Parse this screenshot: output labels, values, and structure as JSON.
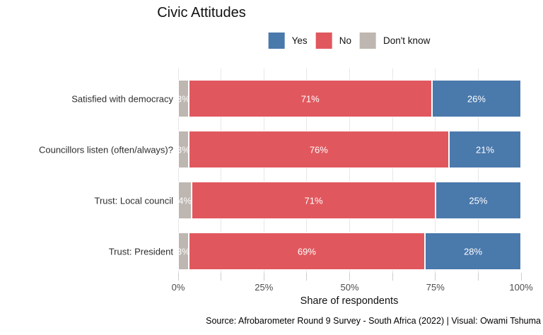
{
  "title": "Civic Attitudes",
  "legend": {
    "items": [
      {
        "label": "Yes",
        "color": "#4a79ac"
      },
      {
        "label": "No",
        "color": "#e0585e"
      },
      {
        "label": "Don't know",
        "color": "#beb6b0"
      }
    ]
  },
  "chart_data": {
    "type": "bar",
    "orientation": "horizontal",
    "stacked": true,
    "title": "Civic Attitudes",
    "xlabel": "Share of respondents",
    "ylabel": "",
    "xlim": [
      0,
      100
    ],
    "x_tick_labels": [
      "0%",
      "25%",
      "50%",
      "75%",
      "100%"
    ],
    "minor_grid_every_percent": 12.5,
    "grid": true,
    "legend_position": "top",
    "categories": [
      "Satisfied with democracy",
      "Councillors listen (often/always)?",
      "Trust: Local council",
      "Trust: President"
    ],
    "series": [
      {
        "name": "Don't know",
        "color": "#beb6b0",
        "values": [
          3,
          3,
          4,
          3
        ]
      },
      {
        "name": "No",
        "color": "#e0585e",
        "values": [
          71,
          76,
          71,
          69
        ]
      },
      {
        "name": "Yes",
        "color": "#4a79ac",
        "values": [
          26,
          21,
          25,
          28
        ]
      }
    ],
    "bar_labels": [
      [
        "3%",
        "71%",
        "26%"
      ],
      [
        "3%",
        "76%",
        "21%"
      ],
      [
        "4%",
        "71%",
        "25%"
      ],
      [
        "3%",
        "69%",
        "28%"
      ]
    ],
    "bar_label_color": "#ffffff"
  },
  "xaxis": {
    "label": "Share of respondents"
  },
  "footer": {
    "text": "Source: Afrobarometer Round 9 Survey - South Africa (2022) | Visual: Owami Tshuma"
  }
}
